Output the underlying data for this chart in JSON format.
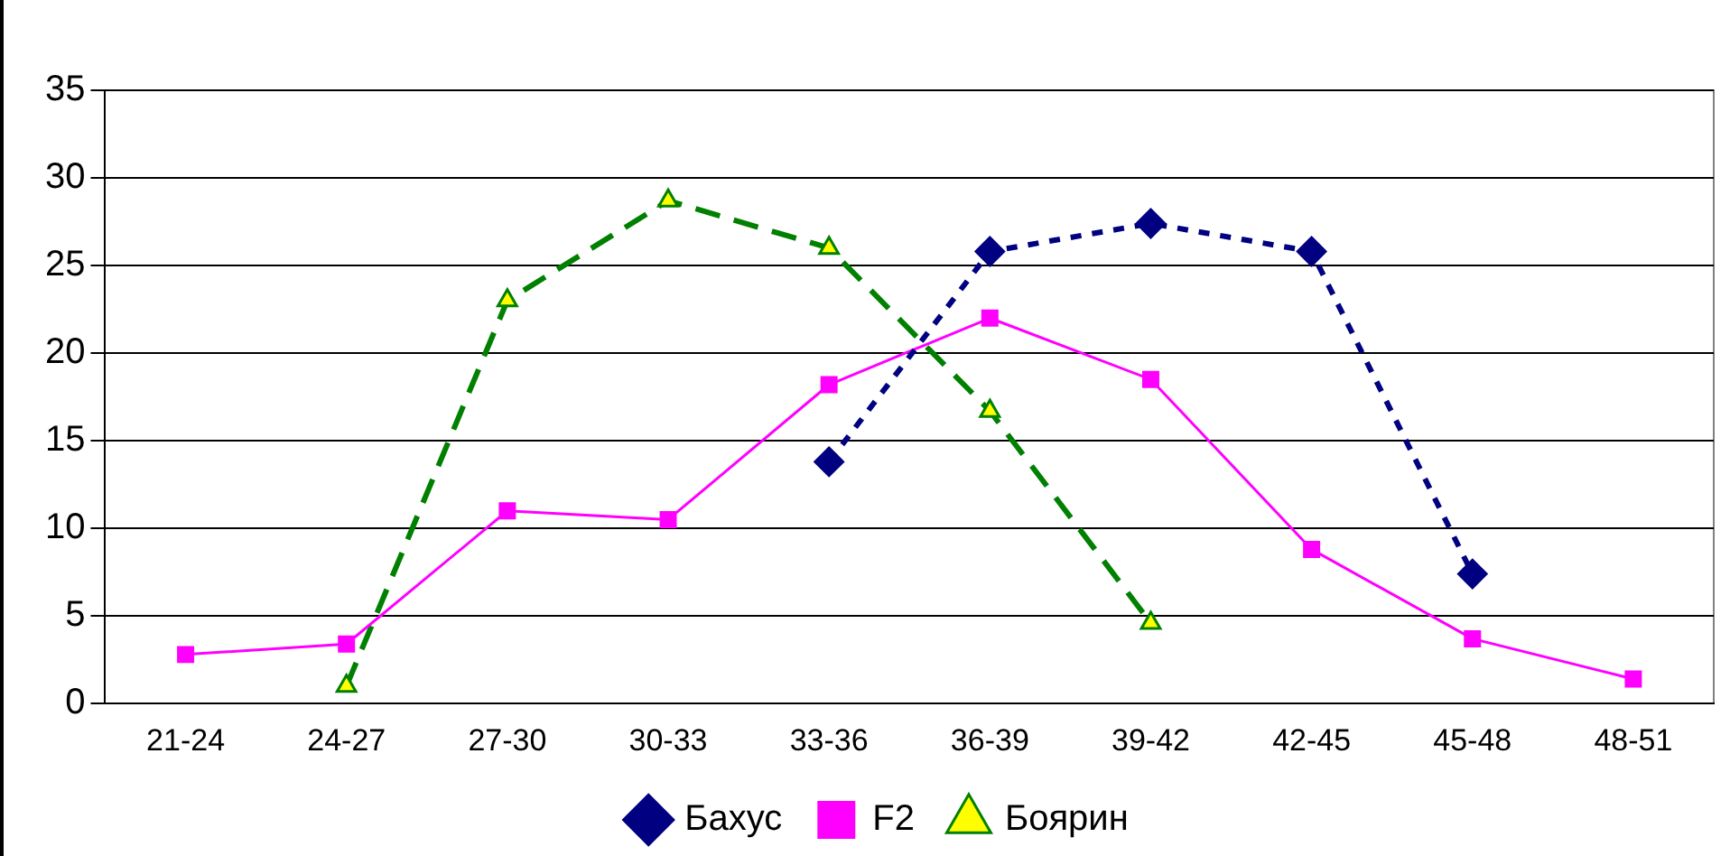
{
  "chart_data": {
    "type": "line",
    "categories": [
      "21-24",
      "24-27",
      "27-30",
      "30-33",
      "33-36",
      "36-39",
      "39-42",
      "42-45",
      "45-48",
      "48-51"
    ],
    "series": [
      {
        "name": "Бахус",
        "color": "#000080",
        "marker": "diamond",
        "line_style": "dotted",
        "values": [
          null,
          null,
          null,
          null,
          13.8,
          25.8,
          27.4,
          25.8,
          7.4,
          null
        ]
      },
      {
        "name": "F2",
        "color": "#ff00ff",
        "marker": "square",
        "line_style": "solid",
        "values": [
          2.8,
          3.4,
          11,
          10.5,
          18.2,
          22,
          18.5,
          8.8,
          3.7,
          1.4
        ]
      },
      {
        "name": "Боярин",
        "color": "#008000",
        "marker": "triangle",
        "line_style": "dashed",
        "values": [
          null,
          1,
          23,
          28.7,
          26,
          16.7,
          4.6,
          null,
          null,
          null
        ]
      }
    ],
    "ylim": [
      0,
      35
    ],
    "yticks": [
      0,
      5,
      10,
      15,
      20,
      25,
      30,
      35
    ],
    "grid": "y",
    "legend": "bottom"
  }
}
